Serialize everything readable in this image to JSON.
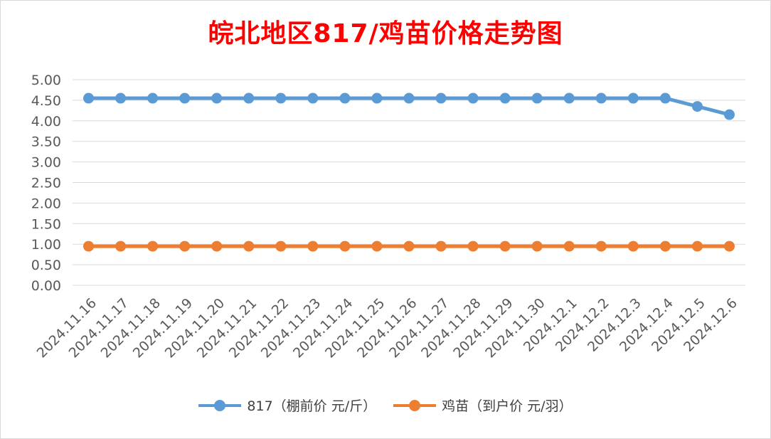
{
  "chart_data": {
    "type": "line",
    "title": "皖北地区817/鸡苗价格走势图",
    "title_color": "#ff0000",
    "categories": [
      "2024.11.16",
      "2024.11.17",
      "2024.11.18",
      "2024.11.19",
      "2024.11.20",
      "2024.11.21",
      "2024.11.22",
      "2024.11.23",
      "2024.11.24",
      "2024.11.25",
      "2024.11.26",
      "2024.11.27",
      "2024.11.28",
      "2024.11.29",
      "2024.11.30",
      "2024.12.1",
      "2024.12.2",
      "2024.12.3",
      "2024.12.4",
      "2024.12.5",
      "2024.12.6"
    ],
    "series": [
      {
        "name": "817（棚前价 元/斤）",
        "color": "#5b9bd5",
        "values": [
          4.55,
          4.55,
          4.55,
          4.55,
          4.55,
          4.55,
          4.55,
          4.55,
          4.55,
          4.55,
          4.55,
          4.55,
          4.55,
          4.55,
          4.55,
          4.55,
          4.55,
          4.55,
          4.55,
          4.35,
          4.15
        ]
      },
      {
        "name": "鸡苗（到户价 元/羽）",
        "color": "#ed7d31",
        "values": [
          0.95,
          0.95,
          0.95,
          0.95,
          0.95,
          0.95,
          0.95,
          0.95,
          0.95,
          0.95,
          0.95,
          0.95,
          0.95,
          0.95,
          0.95,
          0.95,
          0.95,
          0.95,
          0.95,
          0.95,
          0.95
        ]
      }
    ],
    "yticks": [
      "0.00",
      "0.50",
      "1.00",
      "1.50",
      "2.00",
      "2.50",
      "3.00",
      "3.50",
      "4.00",
      "4.50",
      "5.00"
    ],
    "ylim": [
      0,
      5
    ],
    "grid": true,
    "legend_position": "bottom"
  }
}
